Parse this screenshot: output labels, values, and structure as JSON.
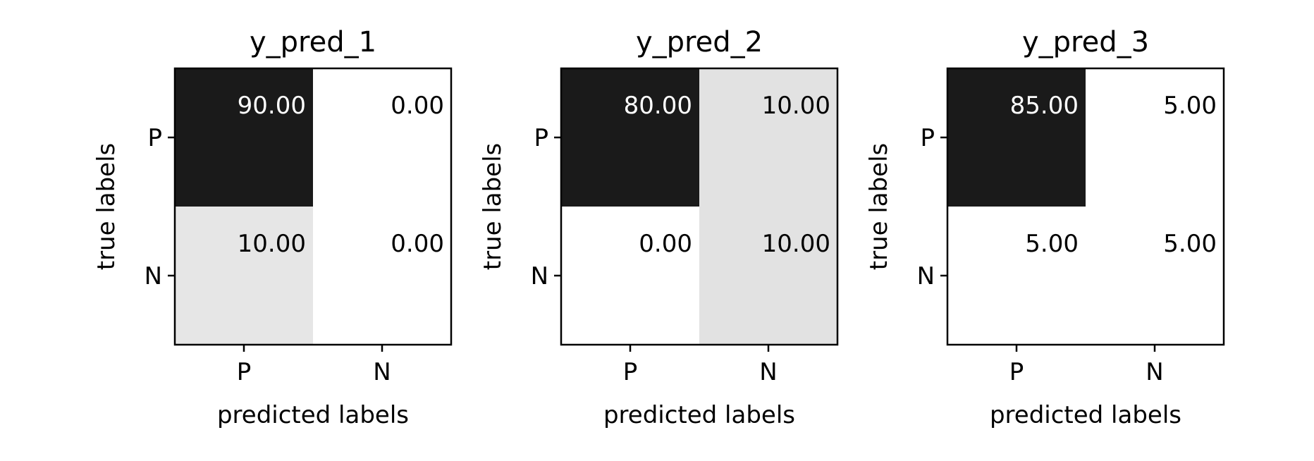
{
  "chart_data": [
    {
      "type": "heatmap",
      "title": "y_pred_1",
      "xlabel": "predicted labels",
      "ylabel": "true labels",
      "x_ticks": [
        "P",
        "N"
      ],
      "y_ticks": [
        "P",
        "N"
      ],
      "values": [
        [
          90,
          0
        ],
        [
          10,
          0
        ]
      ],
      "labels": [
        [
          "90.00",
          "0.00"
        ],
        [
          "10.00",
          "0.00"
        ]
      ],
      "colormap": "gray_r"
    },
    {
      "type": "heatmap",
      "title": "y_pred_2",
      "xlabel": "predicted labels",
      "ylabel": "true labels",
      "x_ticks": [
        "P",
        "N"
      ],
      "y_ticks": [
        "P",
        "N"
      ],
      "values": [
        [
          80,
          10
        ],
        [
          0,
          10
        ]
      ],
      "labels": [
        [
          "80.00",
          "10.00"
        ],
        [
          "0.00",
          "10.00"
        ]
      ],
      "colormap": "gray_r"
    },
    {
      "type": "heatmap",
      "title": "y_pred_3",
      "xlabel": "predicted labels",
      "ylabel": "true labels",
      "x_ticks": [
        "P",
        "N"
      ],
      "y_ticks": [
        "P",
        "N"
      ],
      "values": [
        [
          85,
          5
        ],
        [
          5,
          5
        ]
      ],
      "labels": [
        [
          "85.00",
          "5.00"
        ],
        [
          "5.00",
          "5.00"
        ]
      ],
      "colormap": "gray_r"
    }
  ]
}
